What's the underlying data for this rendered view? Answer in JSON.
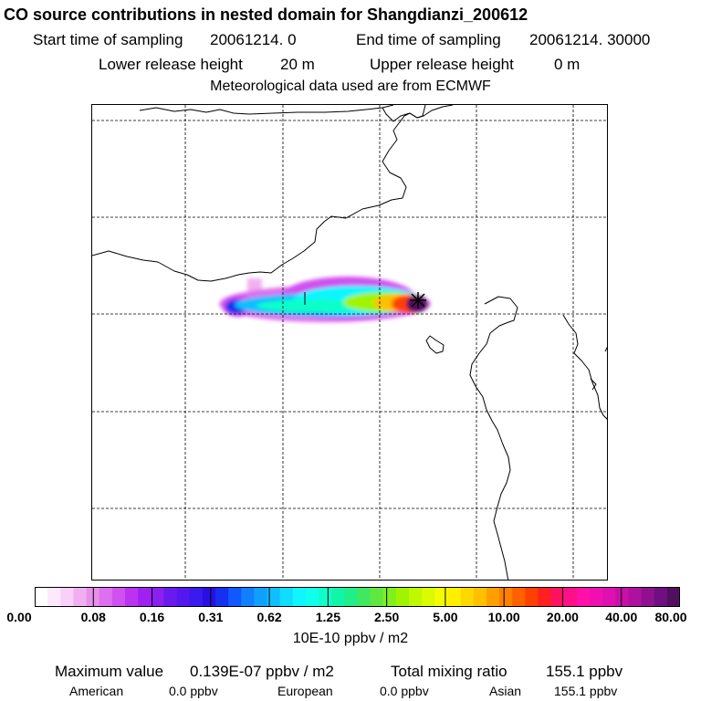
{
  "title": "CO  source contributions in nested domain for Shangdianzi_200612",
  "header": {
    "start_label": "Start time of sampling",
    "start_value": "20061214.     0",
    "end_label": "End time of sampling",
    "end_value": "20061214. 30000",
    "lower_label": "Lower release height",
    "lower_value": "20 m",
    "upper_label": "Upper release height",
    "upper_value": "0 m",
    "meteo": "Meteorological data used are from ECMWF"
  },
  "colorbar": {
    "ticks": [
      "0.00",
      "0.08",
      "0.16",
      "0.31",
      "0.62",
      "1.25",
      "2.50",
      "5.00",
      "10.00",
      "20.00",
      "40.00",
      "80.00"
    ],
    "colors": [
      "#ffffff",
      "#fde8fd",
      "#f8d0f8",
      "#f0b0f0",
      "#e890e8",
      "#dd70ee",
      "#d050f0",
      "#bb33f0",
      "#a020f0",
      "#8a20f0",
      "#6a1aee",
      "#5218ee",
      "#3a1aee",
      "#2a10e0",
      "#1530ee",
      "#1058ff",
      "#1080ff",
      "#10a0ff",
      "#10bfff",
      "#10dcff",
      "#10f5ff",
      "#10ffec",
      "#10ffc8",
      "#10f5a8",
      "#20ee88",
      "#40e860",
      "#60e840",
      "#80ef20",
      "#a0f400",
      "#c0f800",
      "#dcfa00",
      "#f4fc00",
      "#fff000",
      "#ffd800",
      "#ffc000",
      "#ffa000",
      "#ff8000",
      "#ff6000",
      "#ff4000",
      "#ff2020",
      "#ff1060",
      "#ff1088",
      "#ff10a8",
      "#f010b0",
      "#e010b0",
      "#c810a8",
      "#b010a0",
      "#901090",
      "#701080",
      "#501060"
    ],
    "units": "10E-10 ppbv / m2"
  },
  "footer": {
    "max_label": "Maximum value",
    "max_value": "0.139E-07 ppbv / m2",
    "total_label": "Total mixing ratio",
    "total_value": "155.1 ppbv",
    "american_label": "American",
    "american_value": "0.0 ppbv",
    "european_label": "European",
    "european_value": "0.0 ppbv",
    "asian_label": "Asian",
    "asian_value": "155.1 ppbv"
  },
  "colors": {
    "grid": "#000000",
    "coast": "#000000",
    "receptor": "#000000"
  }
}
